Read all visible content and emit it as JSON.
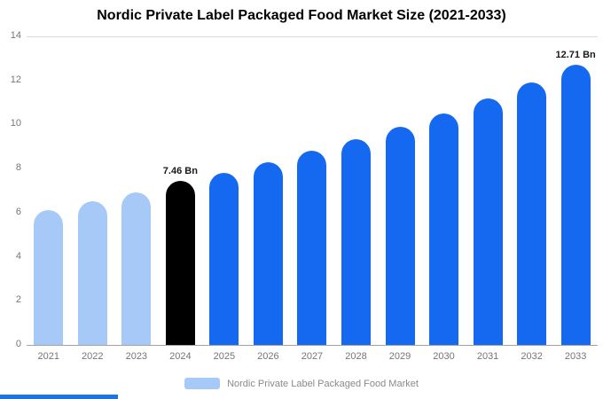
{
  "title": "Nordic Private Label Packaged Food Market Size (2021-2033)",
  "legend": {
    "label": "Nordic Private Label Packaged Food Market",
    "swatch_color": "#a6c9f7"
  },
  "colors": {
    "historical_bar": "#a6c9f7",
    "current_bar": "#000000",
    "forecast_bar": "#1569f0",
    "bottom_strip": "#1a73e8"
  },
  "chart_data": {
    "type": "bar",
    "title": "Nordic Private Label Packaged Food Market Size (2021-2033)",
    "categories": [
      "2021",
      "2022",
      "2023",
      "2024",
      "2025",
      "2026",
      "2027",
      "2028",
      "2029",
      "2030",
      "2031",
      "2032",
      "2033"
    ],
    "values": [
      6.1,
      6.5,
      6.9,
      7.46,
      7.8,
      8.3,
      8.8,
      9.35,
      9.9,
      10.5,
      11.2,
      11.9,
      12.71
    ],
    "bar_labels": [
      "",
      "",
      "",
      "7.46 Bn",
      "",
      "",
      "",
      "",
      "",
      "",
      "",
      "",
      "12.71 Bn"
    ],
    "bar_colors": [
      "#a6c9f7",
      "#a6c9f7",
      "#a6c9f7",
      "#000000",
      "#1569f0",
      "#1569f0",
      "#1569f0",
      "#1569f0",
      "#1569f0",
      "#1569f0",
      "#1569f0",
      "#1569f0",
      "#1569f0"
    ],
    "xlabel": "",
    "ylabel": "",
    "ylim": [
      0,
      14
    ],
    "y_ticks": [
      0,
      2,
      4,
      6,
      8,
      10,
      12,
      14
    ],
    "grid": "top-line-only",
    "legend_position": "bottom",
    "annotations": [
      {
        "category": "2024",
        "text": "7.46 Bn"
      },
      {
        "category": "2033",
        "text": "12.71 Bn"
      }
    ]
  }
}
